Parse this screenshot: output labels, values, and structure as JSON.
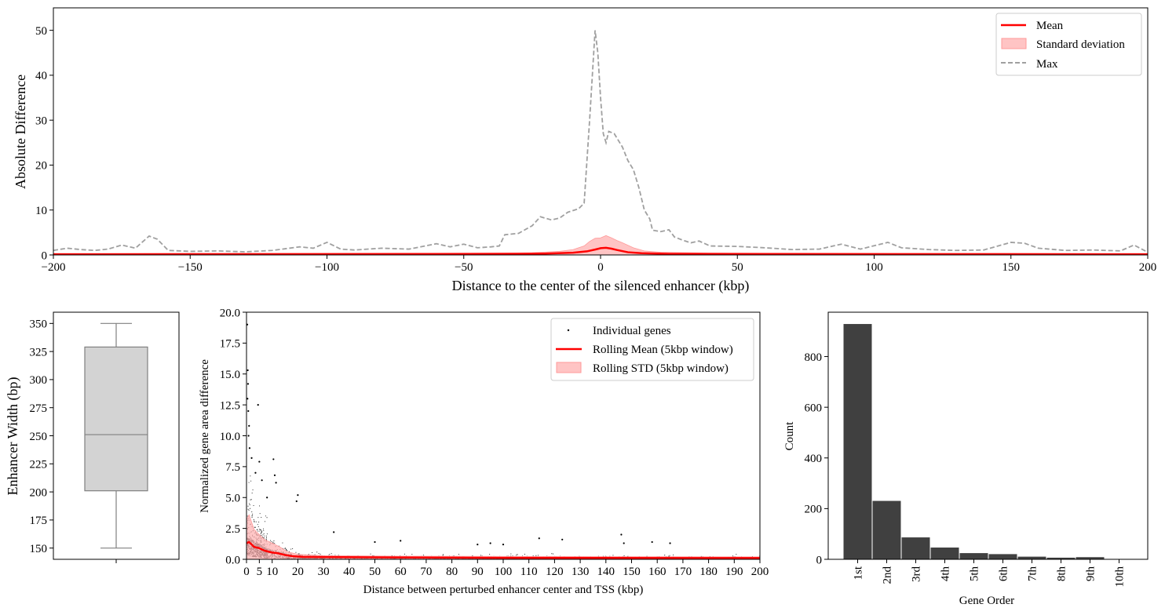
{
  "chart_data": [
    {
      "type": "line",
      "xlabel": "Distance to the center of the silenced enhancer (kbp)",
      "ylabel": "Absolute Difference",
      "xlim": [
        -200,
        200
      ],
      "ylim": [
        0,
        55
      ],
      "xticks": [
        -200,
        -150,
        -100,
        -50,
        0,
        50,
        100,
        150,
        200
      ],
      "yticks": [
        0,
        10,
        20,
        30,
        40,
        50
      ],
      "legend_position": "top-right",
      "series": [
        {
          "name": "Mean",
          "color": "#ff0000",
          "style": "solid",
          "points": [
            [
              -200,
              0.15
            ],
            [
              -60,
              0.2
            ],
            [
              -30,
              0.25
            ],
            [
              -20,
              0.3
            ],
            [
              -10,
              0.5
            ],
            [
              -5,
              0.8
            ],
            [
              -2,
              1.2
            ],
            [
              0,
              1.5
            ],
            [
              2,
              1.6
            ],
            [
              4,
              1.4
            ],
            [
              6,
              1.1
            ],
            [
              10,
              0.6
            ],
            [
              15,
              0.4
            ],
            [
              25,
              0.25
            ],
            [
              60,
              0.2
            ],
            [
              200,
              0.15
            ]
          ]
        },
        {
          "name": "Standard deviation",
          "color": "#ffb3b3",
          "style": "band",
          "upper": [
            [
              -200,
              0.3
            ],
            [
              -40,
              0.4
            ],
            [
              -25,
              0.5
            ],
            [
              -15,
              0.8
            ],
            [
              -10,
              1.2
            ],
            [
              -6,
              2.0
            ],
            [
              -4,
              3.0
            ],
            [
              -2,
              3.7
            ],
            [
              0,
              3.8
            ],
            [
              2,
              4.3
            ],
            [
              4,
              3.8
            ],
            [
              6,
              3.2
            ],
            [
              8,
              2.7
            ],
            [
              12,
              1.6
            ],
            [
              16,
              0.9
            ],
            [
              22,
              0.6
            ],
            [
              40,
              0.4
            ],
            [
              200,
              0.3
            ]
          ],
          "lower": [
            [
              -200,
              0.0
            ],
            [
              200,
              0.0
            ]
          ]
        },
        {
          "name": "Max",
          "color": "#a0a0a0",
          "style": "dashed",
          "points": [
            [
              -200,
              1.0
            ],
            [
              -195,
              1.5
            ],
            [
              -190,
              1.2
            ],
            [
              -185,
              1.0
            ],
            [
              -180,
              1.3
            ],
            [
              -175,
              2.2
            ],
            [
              -170,
              1.5
            ],
            [
              -165,
              4.2
            ],
            [
              -162,
              3.5
            ],
            [
              -158,
              1.0
            ],
            [
              -150,
              0.8
            ],
            [
              -140,
              0.9
            ],
            [
              -130,
              0.7
            ],
            [
              -120,
              1.0
            ],
            [
              -110,
              1.8
            ],
            [
              -105,
              1.5
            ],
            [
              -100,
              2.8
            ],
            [
              -95,
              1.3
            ],
            [
              -90,
              1.1
            ],
            [
              -80,
              1.5
            ],
            [
              -70,
              1.3
            ],
            [
              -60,
              2.5
            ],
            [
              -55,
              1.8
            ],
            [
              -50,
              2.4
            ],
            [
              -45,
              1.6
            ],
            [
              -40,
              1.8
            ],
            [
              -37,
              2.0
            ],
            [
              -35,
              4.5
            ],
            [
              -30,
              4.8
            ],
            [
              -25,
              6.5
            ],
            [
              -22,
              8.5
            ],
            [
              -18,
              7.8
            ],
            [
              -15,
              8.2
            ],
            [
              -12,
              9.5
            ],
            [
              -8,
              10.3
            ],
            [
              -6,
              11.5
            ],
            [
              -4,
              30.0
            ],
            [
              -2,
              50.0
            ],
            [
              -1,
              45.0
            ],
            [
              0,
              35.0
            ],
            [
              1,
              27.0
            ],
            [
              2,
              25.0
            ],
            [
              3,
              27.5
            ],
            [
              5,
              27.0
            ],
            [
              8,
              24.0
            ],
            [
              10,
              21.0
            ],
            [
              12,
              19.0
            ],
            [
              14,
              15.0
            ],
            [
              16,
              10.0
            ],
            [
              18,
              8.0
            ],
            [
              19,
              5.5
            ],
            [
              22,
              5.2
            ],
            [
              25,
              5.6
            ],
            [
              27,
              4.0
            ],
            [
              30,
              3.3
            ],
            [
              33,
              2.7
            ],
            [
              36,
              3.1
            ],
            [
              40,
              2.0
            ],
            [
              50,
              1.9
            ],
            [
              60,
              1.6
            ],
            [
              70,
              1.2
            ],
            [
              80,
              1.3
            ],
            [
              88,
              2.4
            ],
            [
              95,
              1.3
            ],
            [
              105,
              2.8
            ],
            [
              110,
              1.6
            ],
            [
              120,
              1.2
            ],
            [
              130,
              1.0
            ],
            [
              140,
              1.1
            ],
            [
              150,
              2.8
            ],
            [
              155,
              2.6
            ],
            [
              160,
              1.5
            ],
            [
              170,
              1.0
            ],
            [
              180,
              1.1
            ],
            [
              190,
              0.9
            ],
            [
              195,
              2.2
            ],
            [
              200,
              0.6
            ]
          ]
        }
      ]
    },
    {
      "type": "box",
      "ylabel": "Enhancer Width (bp)",
      "ylim": [
        140,
        360
      ],
      "yticks": [
        150,
        175,
        200,
        225,
        250,
        275,
        300,
        325,
        350
      ],
      "whisker_low": 150,
      "q1": 201,
      "median": 251,
      "q3": 329,
      "whisker_high": 350,
      "box_color": "#d3d3d3",
      "line_color": "#808080"
    },
    {
      "type": "scatter",
      "xlabel": "Distance between perturbed enhancer center and TSS (kbp)",
      "ylabel": "Normalized gene area difference",
      "xlim": [
        0,
        200
      ],
      "ylim": [
        0,
        20
      ],
      "xticks": [
        0,
        5,
        10,
        20,
        30,
        40,
        50,
        60,
        70,
        80,
        90,
        100,
        110,
        120,
        130,
        140,
        150,
        160,
        170,
        180,
        190,
        200
      ],
      "yticks": [
        0.0,
        2.5,
        5.0,
        7.5,
        10.0,
        12.5,
        15.0,
        17.5,
        20.0
      ],
      "legend_position": "top-right",
      "series": [
        {
          "name": "Individual genes",
          "color": "#000000",
          "style": "points",
          "highlight_points": [
            [
              0.3,
              19.0
            ],
            [
              0.5,
              15.3
            ],
            [
              0.6,
              14.2
            ],
            [
              0.4,
              13.0
            ],
            [
              0.7,
              12.0
            ],
            [
              1.0,
              10.8
            ],
            [
              0.8,
              10.0
            ],
            [
              1.2,
              9.0
            ],
            [
              4.5,
              12.5
            ],
            [
              10.5,
              8.1
            ],
            [
              5.0,
              7.9
            ],
            [
              2.0,
              8.2
            ],
            [
              3.5,
              7.0
            ],
            [
              11.0,
              6.8
            ],
            [
              11.5,
              6.2
            ],
            [
              20.0,
              5.2
            ],
            [
              19.5,
              4.7
            ],
            [
              8.0,
              5.0
            ],
            [
              6.0,
              6.4
            ],
            [
              146.0,
              2.0
            ],
            [
              34.0,
              2.2
            ],
            [
              114.0,
              1.7
            ],
            [
              123.0,
              1.6
            ],
            [
              147.0,
              1.3
            ],
            [
              158.0,
              1.4
            ],
            [
              165.0,
              1.3
            ],
            [
              50.0,
              1.4
            ],
            [
              60.0,
              1.5
            ],
            [
              95.0,
              1.3
            ],
            [
              90.0,
              1.2
            ],
            [
              100.0,
              1.2
            ]
          ]
        },
        {
          "name": "Rolling Mean (5kbp window)",
          "color": "#ff0000",
          "style": "solid",
          "points": [
            [
              0,
              1.3
            ],
            [
              1,
              1.4
            ],
            [
              2,
              1.2
            ],
            [
              3,
              1.0
            ],
            [
              5,
              0.9
            ],
            [
              7,
              0.7
            ],
            [
              10,
              0.55
            ],
            [
              12,
              0.5
            ],
            [
              15,
              0.35
            ],
            [
              18,
              0.25
            ],
            [
              22,
              0.2
            ],
            [
              30,
              0.18
            ],
            [
              60,
              0.15
            ],
            [
              100,
              0.12
            ],
            [
              200,
              0.1
            ]
          ]
        },
        {
          "name": "Rolling STD (5kbp window)",
          "color": "#ffb3b3",
          "style": "band",
          "upper": [
            [
              0,
              3.2
            ],
            [
              1,
              3.6
            ],
            [
              2,
              3.0
            ],
            [
              3,
              2.4
            ],
            [
              5,
              2.0
            ],
            [
              7,
              1.6
            ],
            [
              10,
              1.3
            ],
            [
              13,
              1.0
            ],
            [
              16,
              0.6
            ],
            [
              20,
              0.4
            ],
            [
              30,
              0.3
            ],
            [
              60,
              0.25
            ],
            [
              200,
              0.2
            ]
          ],
          "lower": [
            [
              0,
              0
            ],
            [
              200,
              0
            ]
          ]
        }
      ]
    },
    {
      "type": "bar",
      "xlabel": "Gene Order",
      "ylabel": "Count",
      "categories": [
        "1st",
        "2nd",
        "3rd",
        "4th",
        "5th",
        "6th",
        "7th",
        "8th",
        "9th",
        "10th"
      ],
      "values": [
        930,
        232,
        88,
        48,
        26,
        22,
        12,
        8,
        10,
        2
      ],
      "ylim": [
        0,
        975
      ],
      "yticks": [
        0,
        200,
        400,
        600,
        800
      ],
      "color": "#404040"
    }
  ]
}
